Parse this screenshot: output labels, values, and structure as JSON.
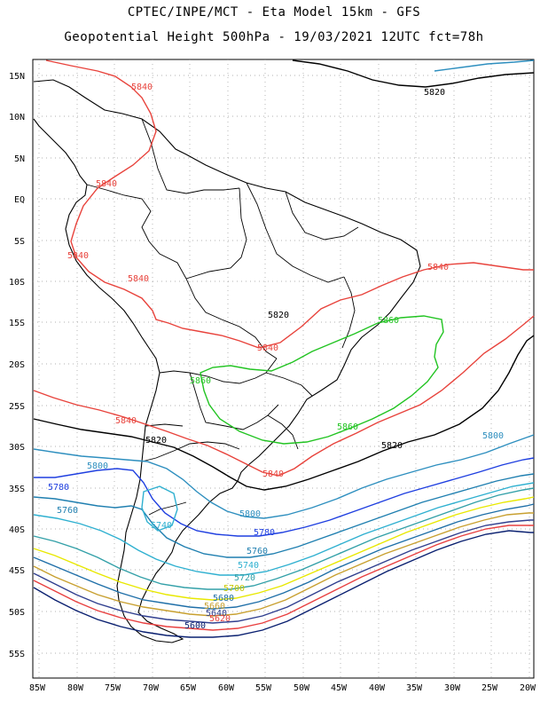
{
  "header": {
    "line1": "CPTEC/INPE/MCT -  Eta Model 15km - GFS",
    "line2": "Geopotential Height 500hPa - 19/03/2021 12UTC fct=78h"
  },
  "axes": {
    "lat_labels": [
      "15N",
      "10N",
      "5N",
      "EQ",
      "5S",
      "10S",
      "15S",
      "20S",
      "25S",
      "30S",
      "35S",
      "40S",
      "45S",
      "50S",
      "55S"
    ],
    "lon_labels": [
      "85W",
      "80W",
      "75W",
      "70W",
      "65W",
      "60W",
      "55W",
      "50W",
      "45W",
      "40W",
      "35W",
      "30W",
      "25W",
      "20W"
    ],
    "lat_range": [
      16.5,
      -58.5
    ],
    "lon_range": [
      -86.5,
      -19.5
    ],
    "grid": "dotted"
  },
  "contours": [
    {
      "value": "5840",
      "color": "#e8433c"
    },
    {
      "value": "5820",
      "color": "#000000"
    },
    {
      "value": "5860",
      "color": "#22c422"
    },
    {
      "value": "5800",
      "color": "#2e8fbf"
    },
    {
      "value": "5780",
      "color": "#1f3fe0"
    },
    {
      "value": "5760",
      "color": "#1f7fb0"
    },
    {
      "value": "5740",
      "color": "#2fb0d0"
    },
    {
      "value": "5720",
      "color": "#33a0a8"
    },
    {
      "value": "5700",
      "color": "#e8e800"
    },
    {
      "value": "5680",
      "color": "#1f6fa8"
    },
    {
      "value": "5660",
      "color": "#c8a030"
    },
    {
      "value": "5640",
      "color": "#303f8f"
    },
    {
      "value": "5620",
      "color": "#e84040"
    },
    {
      "value": "5600",
      "color": "#0a2070"
    }
  ],
  "contour_labels": [
    {
      "value": "5840",
      "color": "#e8433c"
    },
    {
      "value": "5840",
      "color": "#e8433c"
    },
    {
      "value": "5840",
      "color": "#e8433c"
    },
    {
      "value": "5840",
      "color": "#e8433c"
    },
    {
      "value": "5840",
      "color": "#e8433c"
    },
    {
      "value": "5840",
      "color": "#e8433c"
    },
    {
      "value": "5840",
      "color": "#e8433c"
    },
    {
      "value": "5840",
      "color": "#e8433c"
    },
    {
      "value": "5820",
      "color": "#000000"
    },
    {
      "value": "5820",
      "color": "#000000"
    },
    {
      "value": "5820",
      "color": "#000000"
    },
    {
      "value": "5820",
      "color": "#000000"
    },
    {
      "value": "5860",
      "color": "#22c422"
    },
    {
      "value": "5860",
      "color": "#22c422"
    },
    {
      "value": "5860",
      "color": "#22c422"
    },
    {
      "value": "5800",
      "color": "#2e8fbf"
    },
    {
      "value": "5800",
      "color": "#2e8fbf"
    },
    {
      "value": "5800",
      "color": "#2e8fbf"
    },
    {
      "value": "5780",
      "color": "#1f3fe0"
    },
    {
      "value": "5780",
      "color": "#1f3fe0"
    },
    {
      "value": "5760",
      "color": "#1f7fb0"
    },
    {
      "value": "5760",
      "color": "#1f7fb0"
    },
    {
      "value": "5740",
      "color": "#2fb0d0"
    },
    {
      "value": "5740",
      "color": "#2fb0d0"
    },
    {
      "value": "5720",
      "color": "#33a0a8"
    },
    {
      "value": "5700",
      "color": "#e8e800"
    },
    {
      "value": "5680",
      "color": "#1f6fa8"
    },
    {
      "value": "5660",
      "color": "#c8a030"
    },
    {
      "value": "5640",
      "color": "#303f8f"
    },
    {
      "value": "5620",
      "color": "#e84040"
    },
    {
      "value": "5600",
      "color": "#0a2070"
    }
  ]
}
